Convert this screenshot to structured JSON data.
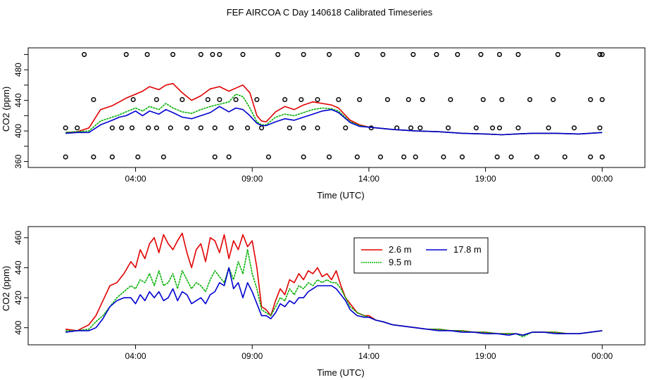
{
  "title": "FEF AIRCOA C  Day 140618  Calibrated Timeseries",
  "colors": {
    "s1": "#e00000",
    "s2": "#00b000",
    "s3": "#0000d0",
    "axis": "#000000",
    "text": "#000000"
  },
  "chart_data": [
    {
      "type": "line",
      "panel": "top",
      "title": "",
      "xlabel": "Time (UTC)",
      "ylabel": "CO2 (ppm)",
      "xlim": [
        0,
        25.5
      ],
      "ylim": [
        355,
        505
      ],
      "xticks": [
        {
          "x": 4,
          "label": "04:00"
        },
        {
          "x": 9,
          "label": "09:00"
        },
        {
          "x": 14,
          "label": "14:00"
        },
        {
          "x": 19,
          "label": "19:00"
        },
        {
          "x": 24,
          "label": "00:00"
        }
      ],
      "yticks": [
        {
          "y": 360,
          "label": "360"
        },
        {
          "y": 380,
          "label": ""
        },
        {
          "y": 400,
          "label": "400"
        },
        {
          "y": 420,
          "label": ""
        },
        {
          "y": 440,
          "label": "440"
        },
        {
          "y": 460,
          "label": ""
        },
        {
          "y": 480,
          "label": "480"
        },
        {
          "y": 500,
          "label": ""
        }
      ],
      "series": [
        {
          "name": "2.6 m",
          "color": "#e00000",
          "x": [
            1.0,
            1.5,
            2.0,
            2.5,
            3.0,
            3.3,
            3.6,
            4.0,
            4.3,
            4.6,
            5.0,
            5.3,
            5.6,
            6.0,
            6.4,
            6.8,
            7.2,
            7.6,
            8.0,
            8.3,
            8.6,
            8.9,
            9.2,
            9.4,
            9.6,
            10.0,
            10.4,
            10.8,
            11.2,
            11.6,
            12.0,
            12.4,
            12.7,
            13.2,
            13.6,
            14.0,
            15.0,
            16.0,
            17.0,
            18.0,
            19.0,
            19.7,
            20.3,
            21.0,
            22.0,
            23.0,
            24.0
          ],
          "y": [
            398,
            399,
            404,
            428,
            433,
            438,
            443,
            448,
            452,
            458,
            454,
            460,
            462,
            450,
            440,
            446,
            455,
            458,
            452,
            456,
            460,
            450,
            420,
            413,
            412,
            425,
            432,
            428,
            434,
            438,
            436,
            434,
            430,
            414,
            408,
            405,
            402,
            400,
            399,
            397,
            396,
            395,
            396,
            397,
            397,
            396,
            398
          ]
        },
        {
          "name": "9.5 m",
          "color": "#00b000",
          "x": [
            1.0,
            1.5,
            2.0,
            2.5,
            3.0,
            3.3,
            3.6,
            4.0,
            4.3,
            4.6,
            5.0,
            5.3,
            5.6,
            6.0,
            6.4,
            6.8,
            7.2,
            7.6,
            8.0,
            8.3,
            8.6,
            8.9,
            9.2,
            9.4,
            9.6,
            10.0,
            10.4,
            10.8,
            11.2,
            11.6,
            12.0,
            12.4,
            12.7,
            13.2,
            13.6,
            14.0,
            15.0,
            16.0,
            17.0,
            18.0,
            19.0,
            19.7,
            20.3,
            21.0,
            22.0,
            23.0,
            24.0
          ],
          "y": [
            398,
            399,
            400,
            413,
            418,
            421,
            425,
            430,
            426,
            432,
            428,
            436,
            430,
            425,
            423,
            428,
            432,
            435,
            438,
            448,
            445,
            430,
            412,
            408,
            408,
            418,
            422,
            420,
            424,
            428,
            430,
            429,
            426,
            412,
            407,
            405,
            402,
            400,
            399,
            397,
            396,
            395,
            396,
            397,
            397,
            396,
            398
          ]
        },
        {
          "name": "17.8 m",
          "color": "#0000d0",
          "x": [
            1.0,
            1.5,
            2.0,
            2.5,
            3.0,
            3.3,
            3.6,
            4.0,
            4.3,
            4.6,
            5.0,
            5.3,
            5.6,
            6.0,
            6.4,
            6.8,
            7.2,
            7.6,
            8.0,
            8.3,
            8.6,
            8.9,
            9.2,
            9.4,
            9.6,
            10.0,
            10.4,
            10.8,
            11.2,
            11.6,
            12.0,
            12.4,
            12.7,
            13.2,
            13.6,
            14.0,
            15.0,
            16.0,
            17.0,
            18.0,
            19.0,
            19.7,
            20.3,
            21.0,
            22.0,
            23.0,
            24.0
          ],
          "y": [
            397,
            398,
            398,
            408,
            414,
            418,
            420,
            426,
            420,
            426,
            422,
            428,
            424,
            418,
            416,
            420,
            424,
            432,
            425,
            430,
            428,
            420,
            410,
            407,
            407,
            412,
            416,
            414,
            418,
            422,
            426,
            428,
            424,
            411,
            406,
            405,
            402,
            400,
            399,
            397,
            396,
            395,
            396,
            397,
            397,
            396,
            398
          ]
        }
      ],
      "markers": {
        "shape": "circle",
        "x": [
          1.0,
          2.2,
          3.0,
          4.1,
          5.2,
          7.4,
          8.0,
          9.7,
          11.2,
          12.3,
          13.5,
          14.5,
          15.5,
          16.0,
          17.2,
          18.0,
          19.5,
          20.1,
          21.2,
          22.4,
          23.5,
          24.0,
          1.0,
          1.5,
          3.0,
          3.4,
          3.85,
          4.55,
          4.9,
          5.5,
          6.2,
          6.8,
          7.4,
          8.1,
          8.8,
          9.4,
          10.6,
          11.2,
          11.8,
          13.0,
          14.1,
          15.2,
          15.8,
          16.2,
          17.4,
          18.6,
          19.3,
          19.6,
          20.4,
          21.7,
          22.8,
          23.9
        ],
        "y": [
          366,
          366,
          366,
          366,
          366,
          366,
          366,
          366,
          366,
          366,
          366,
          366,
          366,
          366,
          366,
          366,
          366,
          366,
          366,
          366,
          366,
          366,
          404,
          404,
          404,
          404,
          404,
          404,
          404,
          404,
          404,
          404,
          404,
          404,
          404,
          404,
          404,
          404,
          404,
          404,
          404,
          404,
          404,
          404,
          404,
          404,
          404,
          404,
          404,
          404,
          404,
          404
        ]
      },
      "markers_top": {
        "shape": "circle",
        "x": [
          1.8,
          3.6,
          4.5,
          5.6,
          6.8,
          7.3,
          7.6,
          8.6,
          10.1,
          11.2,
          12.3,
          13.5,
          14.6,
          15.9,
          16.9,
          17.8,
          18.8,
          19.6,
          20.4,
          22.1,
          23.9,
          24.0,
          2.2,
          3.9,
          4.9,
          6.0,
          7.1,
          7.6,
          8.3,
          9.2,
          10.4,
          11.1,
          11.8,
          12.7,
          13.6,
          14.8,
          15.7,
          16.3,
          17.5,
          18.9,
          19.7,
          20.9,
          21.9,
          23.5,
          24.0
        ],
        "y": [
          500,
          500,
          500,
          500,
          500,
          500,
          500,
          500,
          500,
          500,
          500,
          500,
          500,
          500,
          500,
          500,
          500,
          500,
          500,
          500,
          500,
          500,
          441,
          441,
          441,
          441,
          441,
          441,
          441,
          441,
          441,
          441,
          441,
          441,
          441,
          441,
          441,
          441,
          441,
          441,
          441,
          441,
          441,
          441,
          441
        ]
      }
    },
    {
      "type": "line",
      "panel": "bottom",
      "title": "",
      "xlabel": "Time (UTC)",
      "ylabel": "CO2 (ppm)",
      "xlim": [
        0,
        25.5
      ],
      "ylim": [
        390,
        466
      ],
      "xticks": [
        {
          "x": 4,
          "label": "04:00"
        },
        {
          "x": 9,
          "label": "09:00"
        },
        {
          "x": 14,
          "label": "14:00"
        },
        {
          "x": 19,
          "label": "19:00"
        },
        {
          "x": 24,
          "label": "00:00"
        }
      ],
      "yticks": [
        {
          "y": 400,
          "label": "400"
        },
        {
          "y": 420,
          "label": "420"
        },
        {
          "y": 440,
          "label": "440"
        },
        {
          "y": 460,
          "label": "460"
        }
      ],
      "legend": {
        "position": "top-center",
        "entries": [
          "2.6 m",
          "9.5 m",
          "17.8 m"
        ]
      },
      "series": [
        {
          "name": "2.6 m",
          "color": "#e00000",
          "x": [
            1.0,
            1.5,
            2.0,
            2.3,
            2.6,
            2.9,
            3.2,
            3.5,
            3.8,
            4.0,
            4.2,
            4.4,
            4.6,
            4.8,
            5.0,
            5.2,
            5.4,
            5.6,
            5.8,
            6.0,
            6.2,
            6.4,
            6.6,
            6.8,
            7.0,
            7.2,
            7.4,
            7.6,
            7.8,
            8.0,
            8.2,
            8.4,
            8.6,
            8.8,
            9.0,
            9.2,
            9.4,
            9.6,
            9.8,
            10.0,
            10.2,
            10.4,
            10.6,
            10.8,
            11.0,
            11.2,
            11.4,
            11.6,
            11.8,
            12.0,
            12.2,
            12.4,
            12.6,
            12.8,
            13.0,
            13.2,
            13.5,
            13.8,
            14.0,
            14.3,
            14.6,
            15.0,
            15.5,
            16.0,
            16.5,
            17.0,
            17.5,
            18.0,
            18.5,
            19.0,
            19.5,
            20.0,
            20.3,
            20.6,
            21.0,
            21.5,
            22.0,
            22.5,
            23.0,
            23.5,
            24.0
          ],
          "y": [
            399,
            398,
            402,
            408,
            418,
            428,
            430,
            436,
            444,
            440,
            452,
            446,
            456,
            460,
            450,
            462,
            456,
            452,
            458,
            463,
            450,
            440,
            452,
            456,
            444,
            460,
            458,
            450,
            462,
            446,
            458,
            452,
            462,
            454,
            458,
            440,
            414,
            412,
            408,
            418,
            426,
            422,
            432,
            430,
            436,
            432,
            438,
            436,
            440,
            434,
            436,
            432,
            438,
            428,
            420,
            416,
            410,
            408,
            408,
            405,
            404,
            402,
            401,
            400,
            399,
            399,
            398,
            398,
            397,
            397,
            396,
            396,
            396,
            395,
            397,
            397,
            397,
            396,
            396,
            397,
            398
          ]
        },
        {
          "name": "9.5 m",
          "color": "#00b000",
          "x": [
            1.0,
            1.5,
            2.0,
            2.3,
            2.6,
            2.9,
            3.2,
            3.5,
            3.8,
            4.0,
            4.2,
            4.4,
            4.6,
            4.8,
            5.0,
            5.2,
            5.4,
            5.6,
            5.8,
            6.0,
            6.2,
            6.4,
            6.6,
            6.8,
            7.0,
            7.2,
            7.4,
            7.6,
            7.8,
            8.0,
            8.2,
            8.4,
            8.6,
            8.8,
            9.0,
            9.2,
            9.4,
            9.6,
            9.8,
            10.0,
            10.2,
            10.4,
            10.6,
            10.8,
            11.0,
            11.2,
            11.4,
            11.6,
            11.8,
            12.0,
            12.2,
            12.4,
            12.6,
            12.8,
            13.0,
            13.2,
            13.5,
            13.8,
            14.0,
            14.3,
            14.6,
            15.0,
            15.5,
            16.0,
            16.5,
            17.0,
            17.5,
            18.0,
            18.5,
            19.0,
            19.5,
            20.0,
            20.3,
            20.6,
            21.0,
            21.5,
            22.0,
            22.5,
            23.0,
            23.5,
            24.0
          ],
          "y": [
            398,
            398,
            399,
            404,
            408,
            414,
            420,
            424,
            428,
            426,
            432,
            430,
            436,
            428,
            438,
            428,
            430,
            436,
            426,
            438,
            432,
            426,
            430,
            428,
            424,
            432,
            438,
            434,
            430,
            440,
            432,
            444,
            436,
            452,
            436,
            426,
            412,
            410,
            408,
            414,
            420,
            418,
            426,
            422,
            428,
            426,
            430,
            428,
            432,
            430,
            432,
            430,
            430,
            426,
            420,
            414,
            410,
            408,
            407,
            405,
            404,
            402,
            401,
            400,
            399,
            399,
            398,
            398,
            397,
            397,
            396,
            396,
            396,
            394,
            397,
            397,
            397,
            396,
            396,
            397,
            398
          ]
        },
        {
          "name": "17.8 m",
          "color": "#0000d0",
          "x": [
            1.0,
            1.5,
            2.0,
            2.3,
            2.6,
            2.9,
            3.2,
            3.5,
            3.8,
            4.0,
            4.2,
            4.4,
            4.6,
            4.8,
            5.0,
            5.2,
            5.4,
            5.6,
            5.8,
            6.0,
            6.2,
            6.4,
            6.6,
            6.8,
            7.0,
            7.2,
            7.4,
            7.6,
            7.8,
            8.0,
            8.2,
            8.4,
            8.6,
            8.8,
            9.0,
            9.2,
            9.4,
            9.6,
            9.8,
            10.0,
            10.2,
            10.4,
            10.6,
            10.8,
            11.0,
            11.2,
            11.4,
            11.6,
            11.8,
            12.0,
            12.2,
            12.4,
            12.6,
            12.8,
            13.0,
            13.2,
            13.5,
            13.8,
            14.0,
            14.3,
            14.6,
            15.0,
            15.5,
            16.0,
            16.5,
            17.0,
            17.5,
            18.0,
            18.5,
            19.0,
            19.5,
            20.0,
            20.3,
            20.6,
            21.0,
            21.5,
            22.0,
            22.5,
            23.0,
            23.5,
            24.0
          ],
          "y": [
            397,
            398,
            398,
            400,
            406,
            414,
            418,
            420,
            420,
            416,
            422,
            418,
            424,
            420,
            424,
            418,
            420,
            426,
            418,
            424,
            422,
            416,
            418,
            420,
            416,
            422,
            424,
            430,
            428,
            440,
            426,
            430,
            420,
            430,
            424,
            416,
            408,
            408,
            406,
            410,
            416,
            414,
            418,
            416,
            420,
            420,
            424,
            426,
            428,
            428,
            428,
            428,
            426,
            422,
            418,
            412,
            408,
            407,
            407,
            405,
            404,
            402,
            401,
            400,
            399,
            398,
            398,
            397,
            397,
            396,
            396,
            395,
            396,
            395,
            397,
            397,
            396,
            396,
            396,
            397,
            398
          ]
        }
      ]
    }
  ]
}
